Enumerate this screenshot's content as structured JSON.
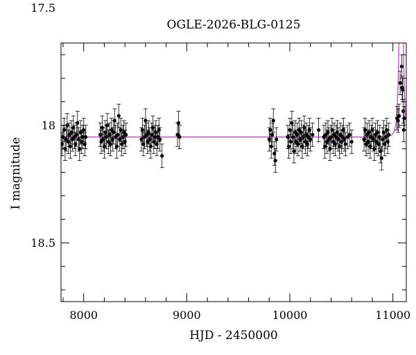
{
  "chart_data": {
    "type": "scatter",
    "title": "OGLE-2026-BLG-0125",
    "xlabel": "HJD - 2450000",
    "ylabel": "I magnitude",
    "xlim": [
      7780,
      11130
    ],
    "ylim": [
      18.75,
      17.65
    ],
    "y_inverted": true,
    "x_ticks": [
      8000,
      9000,
      10000,
      11000
    ],
    "x_tick_labels": [
      "8000",
      "9000",
      "10000",
      "11000"
    ],
    "y_ticks": [
      17.5,
      18,
      18.5
    ],
    "y_tick_labels": [
      "17.5",
      "18",
      "18.5"
    ],
    "grid": false,
    "legend": "none",
    "point_color": "#000000",
    "model_color": "#cc33cc",
    "model": {
      "baseline_mag": 18.05,
      "t0": 11080,
      "tE": 25,
      "u0": 0.06
    },
    "data_points": [
      [
        7790,
        18.08
      ],
      [
        7800,
        18.05
      ],
      [
        7810,
        18.02
      ],
      [
        7820,
        18.1
      ],
      [
        7830,
        18.06
      ],
      [
        7840,
        18.0
      ],
      [
        7850,
        18.07
      ],
      [
        7860,
        18.04
      ],
      [
        7870,
        18.09
      ],
      [
        7880,
        18.03
      ],
      [
        7890,
        18.06
      ],
      [
        7900,
        18.01
      ],
      [
        7910,
        18.05
      ],
      [
        7920,
        18.08
      ],
      [
        7930,
        18.04
      ],
      [
        7940,
        17.99
      ],
      [
        7950,
        18.06
      ],
      [
        7960,
        18.1
      ],
      [
        7970,
        18.03
      ],
      [
        7980,
        18.07
      ],
      [
        7990,
        18.05
      ],
      [
        8000,
        18.02
      ],
      [
        8010,
        18.08
      ],
      [
        8020,
        18.05
      ],
      [
        8160,
        18.04
      ],
      [
        8170,
        18.07
      ],
      [
        8180,
        18.01
      ],
      [
        8190,
        18.06
      ],
      [
        8200,
        18.09
      ],
      [
        8210,
        18.03
      ],
      [
        8220,
        18.05
      ],
      [
        8230,
        18.0
      ],
      [
        8240,
        18.07
      ],
      [
        8250,
        18.04
      ],
      [
        8260,
        18.08
      ],
      [
        8270,
        18.02
      ],
      [
        8280,
        18.06
      ],
      [
        8290,
        18.03
      ],
      [
        8300,
        17.98
      ],
      [
        8310,
        18.05
      ],
      [
        8320,
        18.09
      ],
      [
        8330,
        18.04
      ],
      [
        8340,
        17.96
      ],
      [
        8350,
        18.06
      ],
      [
        8360,
        18.02
      ],
      [
        8370,
        18.08
      ],
      [
        8380,
        18.05
      ],
      [
        8390,
        18.03
      ],
      [
        8400,
        18.07
      ],
      [
        8410,
        18.04
      ],
      [
        8560,
        18.06
      ],
      [
        8570,
        18.02
      ],
      [
        8580,
        18.08
      ],
      [
        8590,
        18.05
      ],
      [
        8600,
        17.98
      ],
      [
        8610,
        18.04
      ],
      [
        8620,
        18.07
      ],
      [
        8630,
        18.03
      ],
      [
        8640,
        18.06
      ],
      [
        8650,
        18.09
      ],
      [
        8660,
        18.04
      ],
      [
        8670,
        18.01
      ],
      [
        8680,
        18.07
      ],
      [
        8690,
        18.05
      ],
      [
        8700,
        18.03
      ],
      [
        8710,
        18.08
      ],
      [
        8720,
        18.05
      ],
      [
        8730,
        18.02
      ],
      [
        8740,
        18.06
      ],
      [
        8760,
        18.13
      ],
      [
        8910,
        18.04
      ],
      [
        8920,
        17.99
      ],
      [
        8930,
        18.05
      ],
      [
        9800,
        18.06
      ],
      [
        9810,
        18.02
      ],
      [
        9820,
        18.09
      ],
      [
        9830,
        18.04
      ],
      [
        9840,
        17.98
      ],
      [
        9850,
        18.12
      ],
      [
        9860,
        18.15
      ],
      [
        9870,
        18.06
      ],
      [
        9980,
        18.05
      ],
      [
        9990,
        18.09
      ],
      [
        10000,
        18.02
      ],
      [
        10010,
        18.07
      ],
      [
        10020,
        17.99
      ],
      [
        10030,
        18.05
      ],
      [
        10040,
        18.11
      ],
      [
        10050,
        18.03
      ],
      [
        10060,
        18.07
      ],
      [
        10070,
        18.04
      ],
      [
        10080,
        18.08
      ],
      [
        10090,
        18.02
      ],
      [
        10100,
        18.06
      ],
      [
        10110,
        18.03
      ],
      [
        10120,
        18.09
      ],
      [
        10130,
        18.05
      ],
      [
        10140,
        18.01
      ],
      [
        10150,
        18.07
      ],
      [
        10160,
        18.04
      ],
      [
        10170,
        18.08
      ],
      [
        10180,
        18.05
      ],
      [
        10190,
        18.02
      ],
      [
        10200,
        18.06
      ],
      [
        10220,
        18.04
      ],
      [
        10280,
        18.02
      ],
      [
        10330,
        18.05
      ],
      [
        10340,
        18.09
      ],
      [
        10350,
        18.04
      ],
      [
        10360,
        18.07
      ],
      [
        10370,
        18.03
      ],
      [
        10380,
        18.06
      ],
      [
        10390,
        18.1
      ],
      [
        10400,
        18.05
      ],
      [
        10410,
        18.02
      ],
      [
        10420,
        18.07
      ],
      [
        10430,
        18.04
      ],
      [
        10440,
        18.08
      ],
      [
        10450,
        18.05
      ],
      [
        10460,
        18.03
      ],
      [
        10470,
        18.06
      ],
      [
        10480,
        18.09
      ],
      [
        10490,
        18.04
      ],
      [
        10500,
        18.07
      ],
      [
        10510,
        18.05
      ],
      [
        10520,
        18.02
      ],
      [
        10530,
        18.06
      ],
      [
        10540,
        18.08
      ],
      [
        10560,
        18.05
      ],
      [
        10580,
        18.04
      ],
      [
        10600,
        18.07
      ],
      [
        10720,
        18.06
      ],
      [
        10730,
        18.02
      ],
      [
        10740,
        18.08
      ],
      [
        10750,
        18.04
      ],
      [
        10760,
        18.07
      ],
      [
        10770,
        18.03
      ],
      [
        10780,
        18.09
      ],
      [
        10790,
        18.05
      ],
      [
        10800,
        18.02
      ],
      [
        10810,
        18.06
      ],
      [
        10820,
        18.1
      ],
      [
        10830,
        18.04
      ],
      [
        10840,
        18.07
      ],
      [
        10850,
        18.03
      ],
      [
        10860,
        18.08
      ],
      [
        10870,
        18.05
      ],
      [
        10880,
        18.11
      ],
      [
        10890,
        18.14
      ],
      [
        10900,
        18.06
      ],
      [
        10910,
        18.03
      ],
      [
        10920,
        18.08
      ],
      [
        10930,
        18.05
      ],
      [
        10940,
        18.02
      ],
      [
        10950,
        18.07
      ],
      [
        10960,
        18.04
      ],
      [
        11040,
        17.97
      ],
      [
        11050,
        17.98
      ],
      [
        11060,
        17.96
      ],
      [
        11070,
        17.82
      ],
      [
        11075,
        17.52
      ],
      [
        11085,
        17.75
      ],
      [
        11090,
        17.84
      ],
      [
        11095,
        17.85
      ],
      [
        11100,
        17.94
      ],
      [
        11105,
        18.02
      ],
      [
        11110,
        17.97
      ]
    ]
  }
}
